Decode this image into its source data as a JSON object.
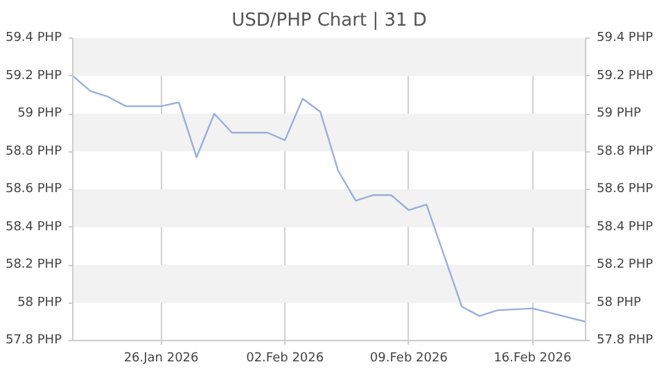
{
  "chart_data": {
    "type": "line",
    "title": "USD/PHP Chart | 31 D",
    "x": [
      "2026-01-21",
      "2026-01-22",
      "2026-01-23",
      "2026-01-24",
      "2026-01-26",
      "2026-01-27",
      "2026-01-28",
      "2026-01-29",
      "2026-01-30",
      "2026-02-01",
      "2026-02-02",
      "2026-02-03",
      "2026-02-04",
      "2026-02-05",
      "2026-02-06",
      "2026-02-07",
      "2026-02-08",
      "2026-02-09",
      "2026-02-10",
      "2026-02-12",
      "2026-02-13",
      "2026-02-14",
      "2026-02-16",
      "2026-02-19"
    ],
    "series": [
      {
        "color": "#9aaedb",
        "values": [
          59.2,
          59.12,
          59.09,
          59.04,
          59.04,
          59.06,
          58.77,
          59.0,
          58.9,
          58.9,
          58.86,
          59.08,
          59.01,
          58.7,
          58.54,
          58.57,
          58.57,
          58.49,
          58.52,
          57.98,
          57.93,
          57.96,
          57.97,
          57.9
        ]
      }
    ],
    "xlim": [
      "2026-01-21",
      "2026-02-19"
    ],
    "xticks": [
      {
        "value": "2026-01-26",
        "label": "26.Jan 2026"
      },
      {
        "value": "2026-02-02",
        "label": "02.Feb 2026"
      },
      {
        "value": "2026-02-09",
        "label": "09.Feb 2026"
      },
      {
        "value": "2026-02-16",
        "label": "16.Feb 2026"
      }
    ],
    "ylim": [
      57.8,
      59.4
    ],
    "yticks": [
      {
        "value": 57.8,
        "label": "57.8 PHP"
      },
      {
        "value": 58,
        "label": "58 PHP"
      },
      {
        "value": 58.2,
        "label": "58.2 PHP"
      },
      {
        "value": 58.4,
        "label": "58.4 PHP"
      },
      {
        "value": 58.6,
        "label": "58.6 PHP"
      },
      {
        "value": 58.8,
        "label": "58.8 PHP"
      },
      {
        "value": 59,
        "label": "59 PHP"
      },
      {
        "value": 59.2,
        "label": "59.2 PHP"
      },
      {
        "value": 59.4,
        "label": "59.4 PHP"
      }
    ],
    "y2lim": [
      57.8,
      59.4
    ],
    "y2ticks": [
      {
        "value": 57.8,
        "label": "57.8 PHP"
      },
      {
        "value": 58,
        "label": "58 PHP"
      },
      {
        "value": 58.2,
        "label": "58.2 PHP"
      },
      {
        "value": 58.4,
        "label": "58.4 PHP"
      },
      {
        "value": 58.6,
        "label": "58.6 PHP"
      },
      {
        "value": 58.8,
        "label": "58.8 PHP"
      },
      {
        "value": 59,
        "label": "59 PHP"
      },
      {
        "value": 59.2,
        "label": "59.2 PHP"
      },
      {
        "value": 59.4,
        "label": "59.4 PHP"
      }
    ],
    "grid": true,
    "line_style": "solid",
    "marker": "none"
  }
}
